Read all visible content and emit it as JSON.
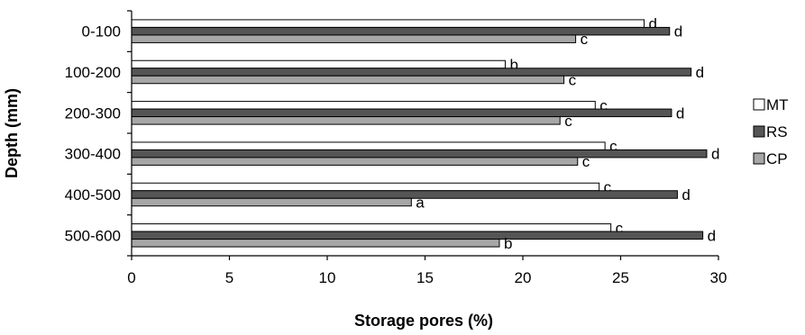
{
  "chart_data": {
    "type": "bar",
    "orientation": "horizontal",
    "title": "",
    "xlabel": "Storage pores (%)",
    "ylabel": "Depth (mm)",
    "xlim": [
      0,
      30
    ],
    "xticks": [
      "0",
      "5",
      "10",
      "15",
      "20",
      "25",
      "30"
    ],
    "categories": [
      "0-100",
      "100-200",
      "200-300",
      "300-400",
      "400-500",
      "500-600"
    ],
    "series": [
      {
        "name": "MT",
        "color": "#ffffff",
        "values": [
          26.2,
          19.1,
          23.7,
          24.2,
          23.9,
          24.5
        ],
        "letters": [
          "d",
          "b",
          "c",
          "c",
          "c",
          "c"
        ]
      },
      {
        "name": "RS",
        "color": "#555555",
        "values": [
          27.5,
          28.6,
          27.6,
          29.4,
          27.9,
          29.2
        ],
        "letters": [
          "d",
          "d",
          "d",
          "d",
          "d",
          "d"
        ]
      },
      {
        "name": "CP",
        "color": "#a6a6a6",
        "values": [
          22.7,
          22.1,
          21.9,
          22.8,
          14.3,
          18.8
        ],
        "letters": [
          "c",
          "c",
          "c",
          "c",
          "a",
          "b"
        ]
      }
    ],
    "grid": false,
    "legend_position": "right"
  }
}
